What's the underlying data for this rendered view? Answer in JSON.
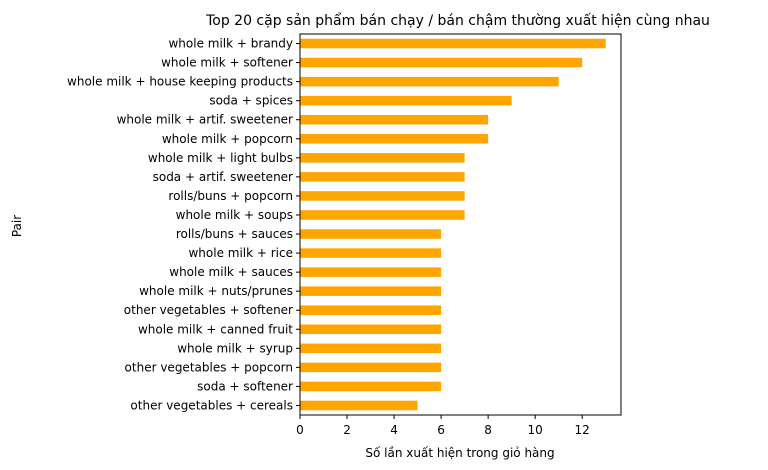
{
  "chart_data": {
    "type": "bar",
    "orientation": "horizontal",
    "title": "Top 20 cặp sản phẩm bán chạy / bán chậm thường xuất hiện cùng nhau",
    "xlabel": "Số lần xuất hiện trong giỏ hàng",
    "ylabel": "Pair",
    "xlim": [
      0,
      13.65
    ],
    "xticks": [
      0,
      2,
      4,
      6,
      8,
      10,
      12
    ],
    "grid": false,
    "bar_color": "#FFA500",
    "categories": [
      "whole milk + brandy",
      "whole milk + softener",
      "whole milk + house keeping products",
      "soda + spices",
      "whole milk + artif. sweetener",
      "whole milk + popcorn",
      "whole milk + light bulbs",
      "soda + artif. sweetener",
      "rolls/buns + popcorn",
      "whole milk + soups",
      "rolls/buns + sauces",
      "whole milk + rice",
      "whole milk + sauces",
      "whole milk + nuts/prunes",
      "other vegetables + softener",
      "whole milk + canned fruit",
      "whole milk + syrup",
      "other vegetables + popcorn",
      "soda + softener",
      "other vegetables + cereals"
    ],
    "values": [
      13,
      12,
      11,
      9,
      8,
      8,
      7,
      7,
      7,
      7,
      6,
      6,
      6,
      6,
      6,
      6,
      6,
      6,
      6,
      5
    ]
  }
}
